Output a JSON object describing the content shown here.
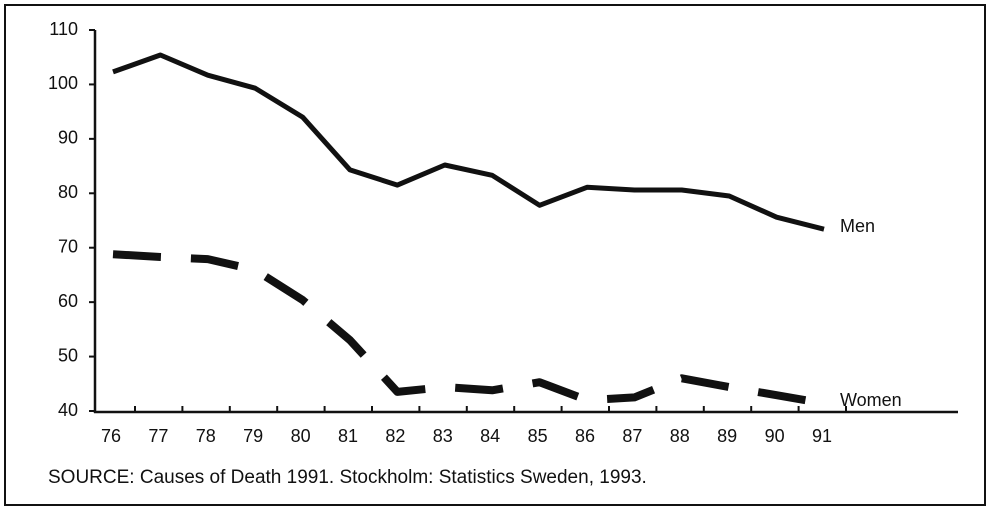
{
  "chart_data": {
    "type": "line",
    "note": "SOURCE: Causes of Death 1991. Stockholm: Statistics Sweden, 1993.",
    "categories": [
      "76",
      "77",
      "78",
      "79",
      "80",
      "81",
      "82",
      "83",
      "84",
      "85",
      "86",
      "87",
      "88",
      "89",
      "90",
      "91"
    ],
    "series": [
      {
        "name": "Men",
        "color": "#111111",
        "style": "solid",
        "values": [
          102.3,
          105.4,
          101.7,
          99.3,
          94,
          84.3,
          81.5,
          85.2,
          83.3,
          77.8,
          81.1,
          80.6,
          80.6,
          79.5,
          75.6,
          73.4
        ]
      },
      {
        "name": "Women",
        "color": "#111111",
        "style": "dashed",
        "values": [
          68.8,
          68.3,
          67.9,
          65.9,
          60.4,
          53,
          43.5,
          44.4,
          43.8,
          45.3,
          42,
          42.5,
          46,
          44.4,
          42.9,
          41.4
        ]
      }
    ],
    "ylim": [
      40,
      110
    ],
    "yticks": [
      40,
      50,
      60,
      70,
      80,
      90,
      100,
      110
    ],
    "grid": false
  }
}
